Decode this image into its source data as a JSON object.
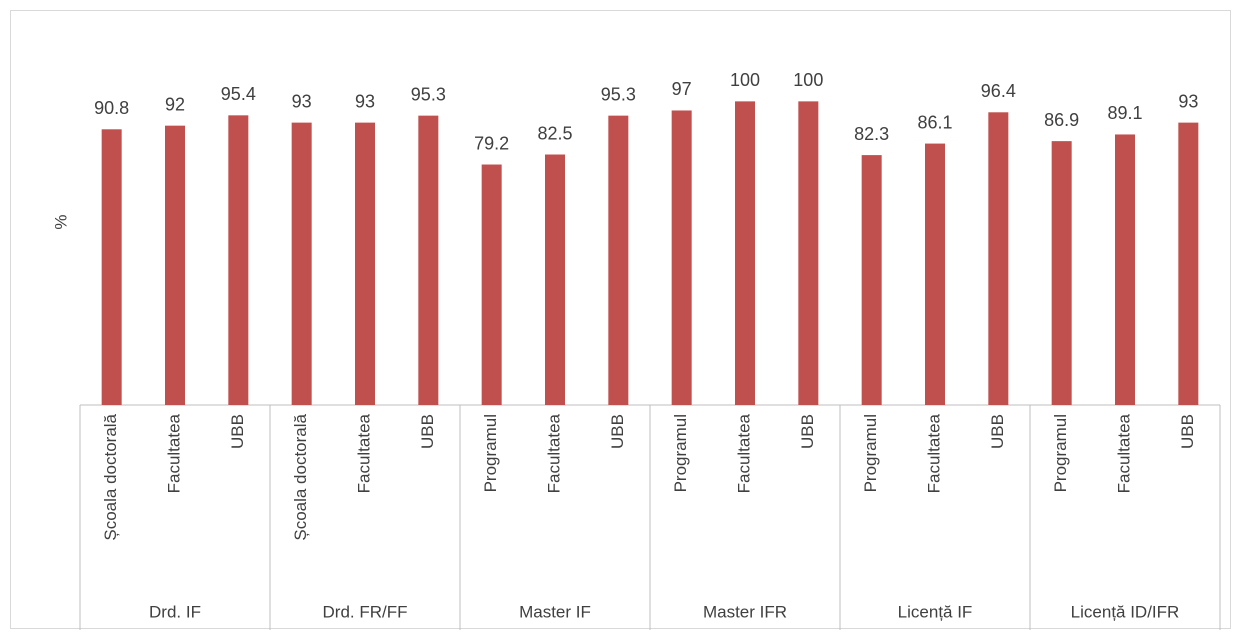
{
  "chart_data": {
    "type": "bar",
    "ylabel": "%",
    "color": "#c0504d",
    "ylim": [
      0,
      110
    ],
    "groups": [
      {
        "label": "Drd. IF",
        "categories": [
          "Școala doctorală",
          "Facultatea",
          "UBB"
        ],
        "values": [
          90.8,
          92,
          95.4
        ]
      },
      {
        "label": "Drd. FR/FF",
        "categories": [
          "Școala doctorală",
          "Facultatea",
          "UBB"
        ],
        "values": [
          93,
          93,
          95.3
        ]
      },
      {
        "label": "Master IF",
        "categories": [
          "Programul",
          "Facultatea",
          "UBB"
        ],
        "values": [
          79.2,
          82.5,
          95.3
        ]
      },
      {
        "label": "Master IFR",
        "categories": [
          "Programul",
          "Facultatea",
          "UBB"
        ],
        "values": [
          97,
          100,
          100
        ]
      },
      {
        "label": "Licență IF",
        "categories": [
          "Programul",
          "Facultatea",
          "UBB"
        ],
        "values": [
          82.3,
          86.1,
          96.4
        ]
      },
      {
        "label": "Licență ID/IFR",
        "categories": [
          "Programul",
          "Facultatea",
          "UBB"
        ],
        "values": [
          86.9,
          89.1,
          93
        ]
      }
    ]
  }
}
